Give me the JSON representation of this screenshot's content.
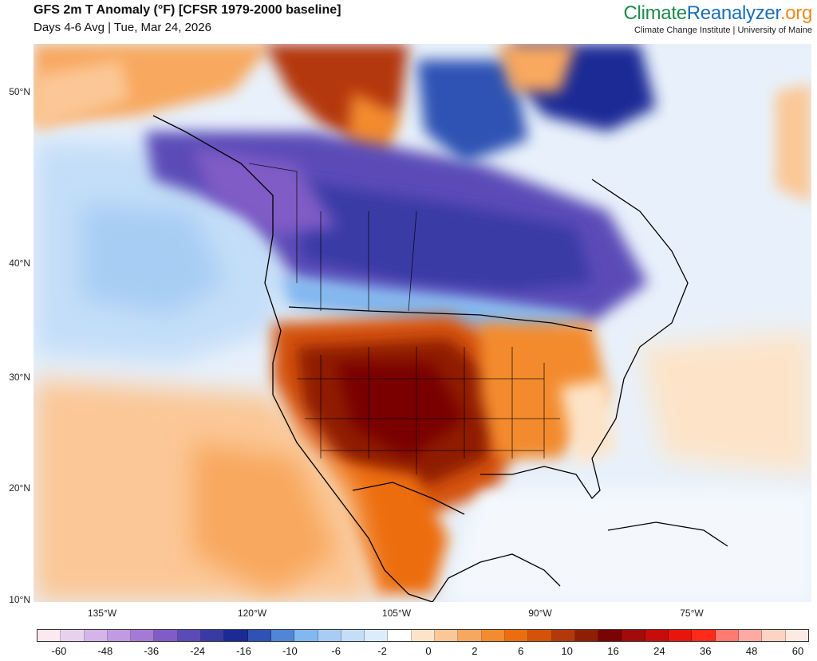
{
  "header": {
    "title": "GFS 2m T Anomaly (°F) [CFSR 1979-2000 baseline]",
    "subtitle": "Days 4-6 Avg | Tue, Mar 24, 2026"
  },
  "brand": {
    "name_part1": "Climate",
    "name_part2": "Reanalyzer",
    "name_part3": ".org",
    "tagline": "Climate Change Institute | University of Maine",
    "colors": {
      "green": "#1e8a4a",
      "blue": "#1a6fb5",
      "orange": "#f08a1a"
    }
  },
  "map": {
    "region": "North America",
    "variable": "2m temperature anomaly",
    "units": "°F",
    "lat_labels": [
      "50°N",
      "40°N",
      "30°N",
      "20°N",
      "10°N"
    ],
    "lon_labels": [
      "135°W",
      "120°W",
      "105°W",
      "90°W",
      "75°W"
    ]
  },
  "legend": {
    "colors": [
      "#fbe9f1",
      "#e7d2ee",
      "#d5b4ea",
      "#c19ae4",
      "#a57ad6",
      "#7f5cc6",
      "#5b4bb7",
      "#3a3aa5",
      "#1c2a96",
      "#2f52b4",
      "#5186d6",
      "#83b7ef",
      "#a7cdf4",
      "#c4def8",
      "#dcecfb",
      "#ffffff",
      "#fde4c8",
      "#fbc796",
      "#f8a85e",
      "#f38b2f",
      "#ec6d10",
      "#d4520a",
      "#b4390a",
      "#8f1f04",
      "#7a0303",
      "#a30a0a",
      "#c80c0c",
      "#e8150d",
      "#ff2a1a",
      "#ff7a70",
      "#fcaaa2",
      "#fdd4c4",
      "#fdebe3"
    ],
    "tick_labels": [
      "-60",
      "-48",
      "-36",
      "-24",
      "-16",
      "-10",
      "-6",
      "-2",
      "0",
      "2",
      "6",
      "10",
      "16",
      "24",
      "36",
      "48",
      "60"
    ]
  }
}
